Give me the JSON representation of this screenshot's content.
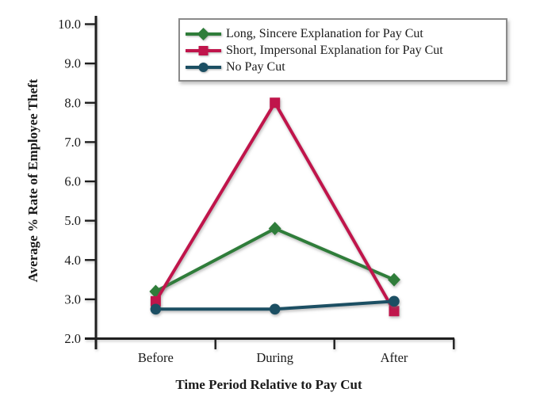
{
  "chart_data": {
    "type": "line",
    "title": "",
    "categories": [
      "Before",
      "During",
      "After"
    ],
    "series": [
      {
        "name": "Long, Sincere Explanation for Pay Cut",
        "color": "#2f7d3a",
        "marker": "diamond",
        "values": [
          3.2,
          4.8,
          3.5
        ]
      },
      {
        "name": "Short, Impersonal Explanation for Pay Cut",
        "color": "#c0154b",
        "marker": "square",
        "values": [
          2.95,
          8.0,
          2.7
        ]
      },
      {
        "name": "No Pay Cut",
        "color": "#1c4f63",
        "marker": "circle",
        "values": [
          2.75,
          2.75,
          2.95
        ]
      }
    ],
    "xlabel": "Time Period Relative to Pay Cut",
    "ylabel": "Average % Rate of Employee Theft",
    "ylim": [
      2.0,
      10.0
    ],
    "ytick_step": 1.0,
    "ytick_labels": [
      "2.0",
      "3.0",
      "4.0",
      "5.0",
      "6.0",
      "7.0",
      "8.0",
      "9.0",
      "10.0"
    ],
    "grid": false,
    "legend_position": "top-center",
    "axis_color": "#1f1f1f",
    "text_color": "#1a1a1a"
  }
}
